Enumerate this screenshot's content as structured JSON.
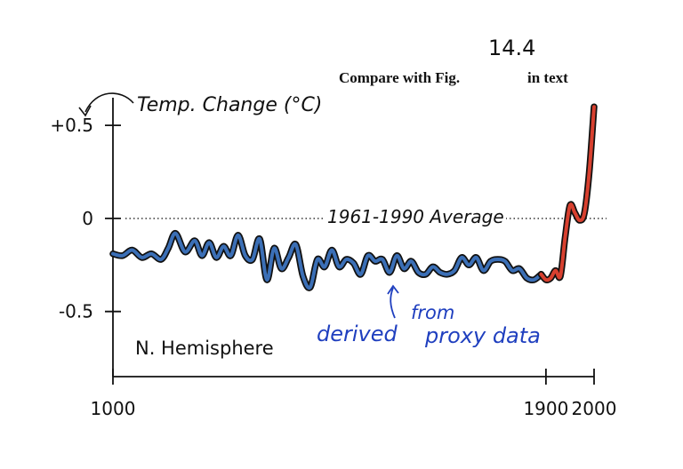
{
  "header": {
    "compare_prefix": "Compare with Fig.",
    "figure_number": "14.4",
    "compare_suffix": "in text"
  },
  "chart_data": {
    "type": "line",
    "title": "",
    "ylabel": "Temp. Change (°C)",
    "xlabel": "",
    "xlim": [
      1000,
      2000
    ],
    "ylim": [
      -0.85,
      0.62
    ],
    "x_ticks": [
      {
        "value": 1000,
        "label": "1000"
      },
      {
        "value": 1900,
        "label": "1900"
      },
      {
        "value": 2000,
        "label": "2000"
      }
    ],
    "y_ticks": [
      {
        "value": 0.5,
        "label": "+0.5"
      },
      {
        "value": 0,
        "label": "0"
      },
      {
        "value": -0.5,
        "label": "-0.5"
      }
    ],
    "reference_line": {
      "value": 0,
      "label": "1961-1990 Average"
    },
    "annotations": {
      "region": "N. Hemisphere",
      "proxy_note_line1": "derived",
      "proxy_note_line2": "from",
      "proxy_note_line3": "proxy data"
    },
    "series": [
      {
        "color": "#3b6fb6",
        "x": [
          1000,
          1020,
          1040,
          1060,
          1080,
          1100,
          1115,
          1130,
          1150,
          1170,
          1185,
          1200,
          1215,
          1230,
          1245,
          1260,
          1275,
          1290,
          1305,
          1320,
          1335,
          1350,
          1365,
          1380,
          1395,
          1410,
          1425,
          1440,
          1455,
          1470,
          1485,
          1500,
          1515,
          1530,
          1545,
          1560,
          1575,
          1590,
          1605,
          1620,
          1635,
          1650,
          1665,
          1680,
          1695,
          1710,
          1725,
          1740,
          1755,
          1770,
          1785,
          1800,
          1815,
          1830,
          1845,
          1860,
          1875,
          1890
        ],
        "values": [
          -0.19,
          -0.2,
          -0.17,
          -0.21,
          -0.19,
          -0.22,
          -0.16,
          -0.08,
          -0.18,
          -0.12,
          -0.2,
          -0.13,
          -0.21,
          -0.15,
          -0.2,
          -0.09,
          -0.2,
          -0.22,
          -0.11,
          -0.33,
          -0.16,
          -0.27,
          -0.21,
          -0.14,
          -0.31,
          -0.37,
          -0.22,
          -0.26,
          -0.17,
          -0.26,
          -0.22,
          -0.24,
          -0.3,
          -0.2,
          -0.23,
          -0.22,
          -0.29,
          -0.2,
          -0.27,
          -0.23,
          -0.29,
          -0.3,
          -0.26,
          -0.29,
          -0.3,
          -0.28,
          -0.21,
          -0.25,
          -0.21,
          -0.28,
          -0.23,
          -0.22,
          -0.23,
          -0.28,
          -0.27,
          -0.32,
          -0.33,
          -0.3
        ]
      },
      {
        "color": "#d8402f",
        "x": [
          1890,
          1900,
          1910,
          1920,
          1930,
          1940,
          1950,
          1960,
          1970,
          1980,
          1990,
          2000
        ],
        "values": [
          -0.3,
          -0.33,
          -0.32,
          -0.28,
          -0.31,
          -0.1,
          0.07,
          0.03,
          -0.01,
          0.03,
          0.25,
          0.6
        ]
      }
    ]
  }
}
